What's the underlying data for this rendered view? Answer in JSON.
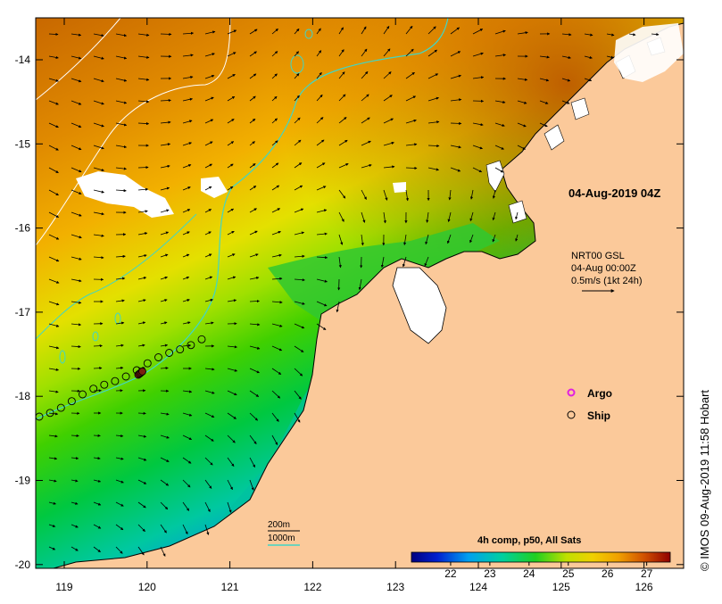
{
  "map": {
    "timestamp_label": "04-Aug-2019 04Z",
    "product_label": "4h comp, p50, All Sats",
    "credit": "© IMOS 09-Aug-2019 11:58 Hobart",
    "current": {
      "source": "NRT00 GSL",
      "time": "04-Aug 00:00Z",
      "scale": "0.5m/s (1kt 24h)"
    },
    "legend": {
      "argo": "Argo",
      "ship": "Ship"
    },
    "contours": {
      "shelf": "200m",
      "deep": "1000m"
    },
    "colorbar": {
      "min": 21,
      "max": 27.6,
      "ticks": [
        "22",
        "23",
        "24",
        "25",
        "26",
        "27"
      ]
    },
    "axes": {
      "lon_ticks": [
        "119",
        "120",
        "121",
        "122",
        "123",
        "124",
        "125",
        "126"
      ],
      "lat_ticks": [
        "-14",
        "-15",
        "-16",
        "-17",
        "-18",
        "-19",
        "-20"
      ]
    },
    "colors": {
      "land": "#fbc99a",
      "cloud": "#ffffff",
      "contour_200": "#40d6c6",
      "contour_1000": "#ffffff",
      "argo": "#e020e0"
    }
  }
}
